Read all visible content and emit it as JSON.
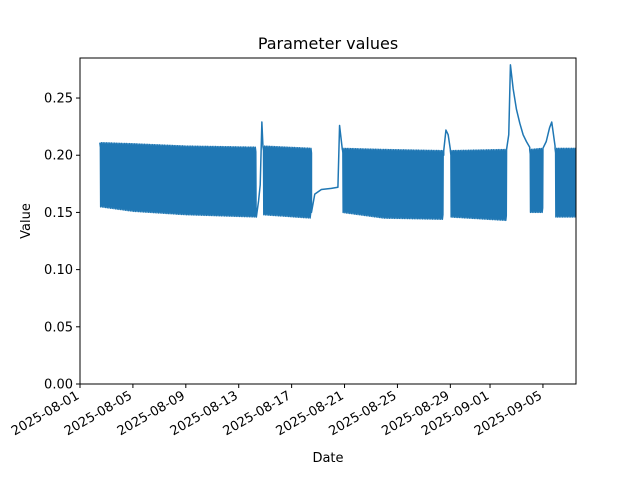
{
  "chart_data": {
    "type": "line",
    "title": "Parameter values",
    "xlabel": "Date",
    "ylabel": "Value",
    "color": "#1f77b4",
    "xlim": [
      "2025-08-01",
      "2025-09-07T12:00"
    ],
    "ylim": [
      0.0,
      0.285
    ],
    "x_ticks": [
      "2025-08-01",
      "2025-08-05",
      "2025-08-09",
      "2025-08-13",
      "2025-08-17",
      "2025-08-21",
      "2025-08-25",
      "2025-08-29",
      "2025-09-01",
      "2025-09-05"
    ],
    "y_ticks": [
      "0.00",
      "0.05",
      "0.10",
      "0.15",
      "0.20",
      "0.25"
    ],
    "y_tick_values": [
      0.0,
      0.05,
      0.1,
      0.15,
      0.2,
      0.25
    ],
    "grid": false,
    "series": [
      {
        "segments": [
          {
            "pattern": "daily_oscillation",
            "x_start": "2025-08-02T12:00",
            "x_end": "2025-08-14T08:00",
            "high": [
              [
                "2025-08-02T12:00",
                0.211
              ],
              [
                "2025-08-05T00:00",
                0.21
              ],
              [
                "2025-08-09T00:00",
                0.208
              ],
              [
                "2025-08-14T08:00",
                0.207
              ]
            ],
            "low": [
              [
                "2025-08-02T12:00",
                0.155
              ],
              [
                "2025-08-05T00:00",
                0.151
              ],
              [
                "2025-08-09T00:00",
                0.148
              ],
              [
                "2025-08-14T08:00",
                0.146
              ]
            ]
          },
          {
            "pattern": "line",
            "points": [
              [
                "2025-08-14T08:00",
                0.146
              ],
              [
                "2025-08-14T12:00",
                0.16
              ],
              [
                "2025-08-14T15:00",
                0.174
              ],
              [
                "2025-08-14T18:00",
                0.229
              ],
              [
                "2025-08-14T20:00",
                0.207
              ]
            ]
          },
          {
            "pattern": "daily_oscillation",
            "x_start": "2025-08-14T20:00",
            "x_end": "2025-08-18T12:00",
            "high": [
              [
                "2025-08-14T20:00",
                0.208
              ],
              [
                "2025-08-18T12:00",
                0.206
              ]
            ],
            "low": [
              [
                "2025-08-14T20:00",
                0.148
              ],
              [
                "2025-08-18T12:00",
                0.145
              ]
            ]
          },
          {
            "pattern": "line",
            "points": [
              [
                "2025-08-18T12:00",
                0.15
              ],
              [
                "2025-08-18T18:00",
                0.166
              ],
              [
                "2025-08-19T06:00",
                0.17
              ],
              [
                "2025-08-20T00:00",
                0.171
              ],
              [
                "2025-08-20T12:00",
                0.172
              ],
              [
                "2025-08-20T15:00",
                0.226
              ],
              [
                "2025-08-20T20:00",
                0.205
              ]
            ]
          },
          {
            "pattern": "daily_oscillation",
            "x_start": "2025-08-20T20:00",
            "x_end": "2025-08-28T12:00",
            "high": [
              [
                "2025-08-20T20:00",
                0.206
              ],
              [
                "2025-08-24T00:00",
                0.205
              ],
              [
                "2025-08-28T12:00",
                0.204
              ]
            ],
            "low": [
              [
                "2025-08-20T20:00",
                0.15
              ],
              [
                "2025-08-24T00:00",
                0.145
              ],
              [
                "2025-08-28T12:00",
                0.144
              ]
            ]
          },
          {
            "pattern": "line",
            "points": [
              [
                "2025-08-28T12:00",
                0.204
              ],
              [
                "2025-08-28T16:00",
                0.222
              ],
              [
                "2025-08-28T20:00",
                0.218
              ],
              [
                "2025-08-29T00:00",
                0.205
              ]
            ]
          },
          {
            "pattern": "daily_oscillation",
            "x_start": "2025-08-29T00:00",
            "x_end": "2025-09-02T06:00",
            "high": [
              [
                "2025-08-29T00:00",
                0.204
              ],
              [
                "2025-09-02T06:00",
                0.205
              ]
            ],
            "low": [
              [
                "2025-08-29T00:00",
                0.146
              ],
              [
                "2025-09-02T06:00",
                0.143
              ]
            ]
          },
          {
            "pattern": "line",
            "points": [
              [
                "2025-09-02T06:00",
                0.205
              ],
              [
                "2025-09-02T10:00",
                0.218
              ],
              [
                "2025-09-02T13:00",
                0.279
              ],
              [
                "2025-09-02T18:00",
                0.258
              ],
              [
                "2025-09-03T00:00",
                0.24
              ],
              [
                "2025-09-03T06:00",
                0.228
              ],
              [
                "2025-09-03T12:00",
                0.218
              ],
              [
                "2025-09-03T18:00",
                0.212
              ],
              [
                "2025-09-04T00:00",
                0.207
              ]
            ]
          },
          {
            "pattern": "daily_oscillation",
            "x_start": "2025-09-04T00:00",
            "x_end": "2025-09-05T00:00",
            "high": [
              [
                "2025-09-04T00:00",
                0.205
              ],
              [
                "2025-09-05T00:00",
                0.206
              ]
            ],
            "low": [
              [
                "2025-09-04T00:00",
                0.15
              ],
              [
                "2025-09-05T00:00",
                0.15
              ]
            ]
          },
          {
            "pattern": "line",
            "points": [
              [
                "2025-09-05T00:00",
                0.206
              ],
              [
                "2025-09-05T06:00",
                0.212
              ],
              [
                "2025-09-05T12:00",
                0.224
              ],
              [
                "2025-09-05T16:00",
                0.229
              ],
              [
                "2025-09-05T22:00",
                0.208
              ]
            ]
          },
          {
            "pattern": "daily_oscillation",
            "x_start": "2025-09-05T22:00",
            "x_end": "2025-09-07T15:00",
            "high": [
              [
                "2025-09-05T22:00",
                0.206
              ],
              [
                "2025-09-07T15:00",
                0.206
              ]
            ],
            "low": [
              [
                "2025-09-05T22:00",
                0.146
              ],
              [
                "2025-09-07T15:00",
                0.146
              ]
            ]
          }
        ]
      }
    ]
  }
}
